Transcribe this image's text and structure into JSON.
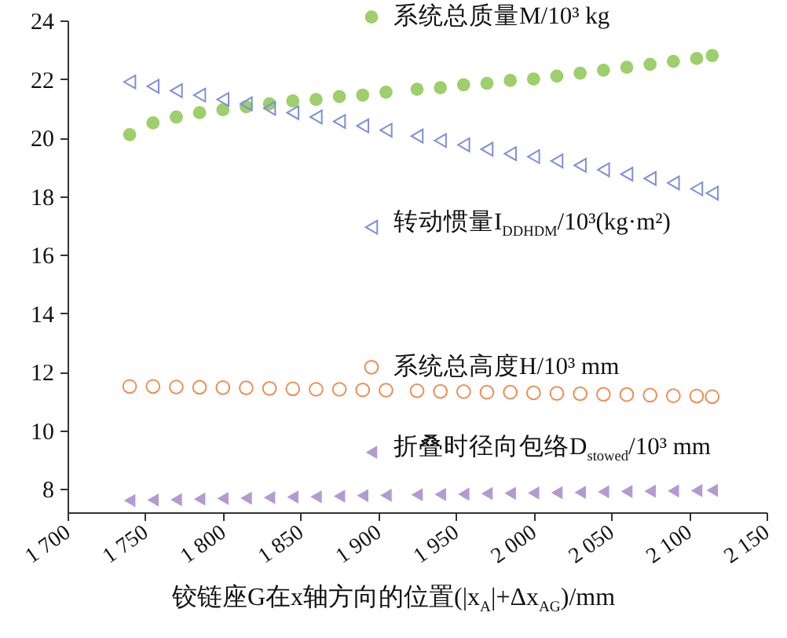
{
  "chart_data": {
    "type": "scatter",
    "xlabel": "铰链座G在x轴方向的位置(|x$_{A}$|+Δx$_{AG}$)/mm",
    "x": [
      1740,
      1755,
      1770,
      1785,
      1800,
      1815,
      1830,
      1845,
      1860,
      1875,
      1890,
      1905,
      1925,
      1940,
      1955,
      1970,
      1985,
      2000,
      2015,
      2030,
      2045,
      2060,
      2075,
      2090,
      2105,
      2115
    ],
    "series": [
      {
        "name": "系统总质量M/10³ kg",
        "color": "#9dcf6a",
        "marker": "circle",
        "values": [
          20.1,
          20.5,
          20.7,
          20.85,
          20.95,
          21.05,
          21.15,
          21.25,
          21.3,
          21.4,
          21.45,
          21.55,
          21.65,
          21.7,
          21.8,
          21.85,
          21.95,
          22.0,
          22.1,
          22.2,
          22.3,
          22.4,
          22.5,
          22.6,
          22.7,
          22.8
        ]
      },
      {
        "name": "转动惯量I$_{DDHDM}$/10³(kg·m²)",
        "color": "#7e8fd8",
        "marker": "triangle",
        "values": [
          21.9,
          21.75,
          21.6,
          21.45,
          21.3,
          21.15,
          21.0,
          20.85,
          20.7,
          20.55,
          20.4,
          20.25,
          20.05,
          19.9,
          19.75,
          19.6,
          19.45,
          19.35,
          19.2,
          19.05,
          18.9,
          18.75,
          18.6,
          18.45,
          18.25,
          18.1
        ]
      },
      {
        "name": "系统总高度H/10³ mm",
        "color": "#ee8f55",
        "marker": "circle",
        "values": [
          11.5,
          11.5,
          11.48,
          11.47,
          11.46,
          11.45,
          11.43,
          11.42,
          11.4,
          11.4,
          11.38,
          11.37,
          11.35,
          11.33,
          11.32,
          11.3,
          11.3,
          11.28,
          11.26,
          11.25,
          11.23,
          11.22,
          11.2,
          11.18,
          11.17,
          11.15
        ]
      },
      {
        "name": "折叠时径向包络D$_{stowed}$/10³ mm",
        "color": "#b39ad0",
        "marker": "triangle",
        "values": [
          7.6,
          7.62,
          7.63,
          7.65,
          7.67,
          7.68,
          7.7,
          7.72,
          7.73,
          7.75,
          7.77,
          7.78,
          7.8,
          7.81,
          7.82,
          7.84,
          7.85,
          7.86,
          7.87,
          7.88,
          7.9,
          7.91,
          7.92,
          7.93,
          7.94,
          7.95
        ]
      }
    ],
    "xlim": [
      1700,
      2150
    ],
    "xticks": [
      {
        "value": 1700,
        "label": "1 700"
      },
      {
        "value": 1750,
        "label": "1 750"
      },
      {
        "value": 1800,
        "label": "1 800"
      },
      {
        "value": 1850,
        "label": "1 850"
      },
      {
        "value": 1900,
        "label": "1 900"
      },
      {
        "value": 1950,
        "label": "1 950"
      },
      {
        "value": 2000,
        "label": "2 000"
      },
      {
        "value": 2050,
        "label": "2 050"
      },
      {
        "value": 2100,
        "label": "2 100"
      },
      {
        "value": 2150,
        "label": "2 150"
      }
    ],
    "legend": "right",
    "ylim": [
      7.2,
      24
    ],
    "yticks": [
      8,
      10,
      12,
      14,
      16,
      18,
      20,
      22,
      24
    ]
  }
}
